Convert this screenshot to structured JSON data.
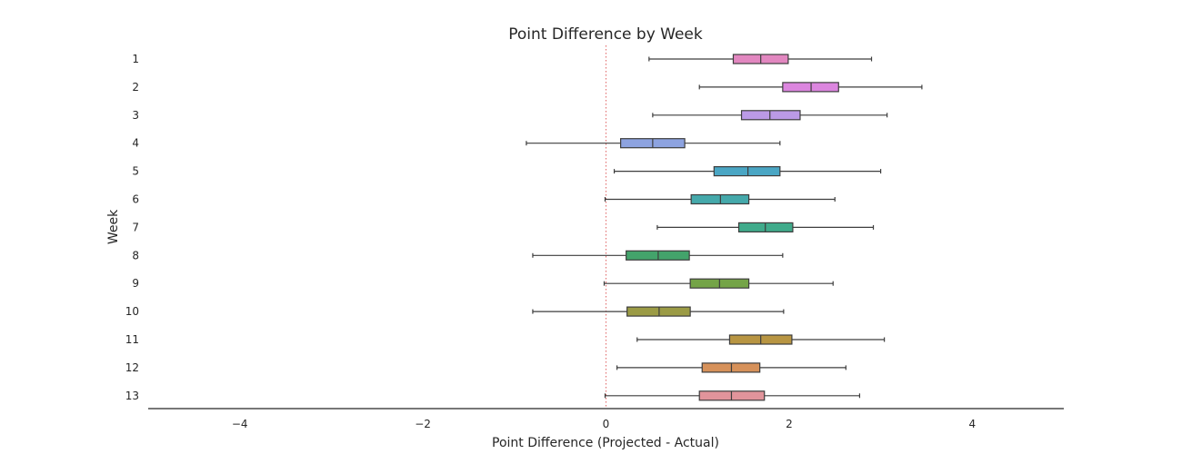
{
  "chart_data": {
    "type": "boxplot",
    "orientation": "horizontal",
    "title": "Point Difference by Week",
    "xlabel": "Point Difference (Projected - Actual)",
    "ylabel": "Week",
    "xlim": [
      -5,
      5
    ],
    "xticks": [
      -4,
      -2,
      0,
      2,
      4
    ],
    "xtick_labels": [
      "−4",
      "−2",
      "0",
      "2",
      "4"
    ],
    "reference_line": {
      "x": 0,
      "color": "#e06666",
      "style": "dotted"
    },
    "grid": false,
    "categories": [
      "1",
      "2",
      "3",
      "4",
      "5",
      "6",
      "7",
      "8",
      "9",
      "10",
      "11",
      "12",
      "13"
    ],
    "boxes": [
      {
        "week": "1",
        "whisker_low": 0.47,
        "q1": 1.39,
        "median": 1.69,
        "q3": 1.99,
        "whisker_high": 2.9,
        "color": "#e287c0"
      },
      {
        "week": "2",
        "whisker_low": 1.02,
        "q1": 1.93,
        "median": 2.24,
        "q3": 2.54,
        "whisker_high": 3.45,
        "color": "#dc86df"
      },
      {
        "week": "3",
        "whisker_low": 0.51,
        "q1": 1.48,
        "median": 1.79,
        "q3": 2.12,
        "whisker_high": 3.07,
        "color": "#bb9ae6"
      },
      {
        "week": "4",
        "whisker_low": -0.87,
        "q1": 0.16,
        "median": 0.51,
        "q3": 0.86,
        "whisker_high": 1.9,
        "color": "#8da3e0"
      },
      {
        "week": "5",
        "whisker_low": 0.09,
        "q1": 1.18,
        "median": 1.55,
        "q3": 1.9,
        "whisker_high": 3.0,
        "color": "#4aa6c4"
      },
      {
        "week": "6",
        "whisker_low": -0.01,
        "q1": 0.93,
        "median": 1.25,
        "q3": 1.56,
        "whisker_high": 2.5,
        "color": "#45a9ab"
      },
      {
        "week": "7",
        "whisker_low": 0.56,
        "q1": 1.45,
        "median": 1.74,
        "q3": 2.04,
        "whisker_high": 2.92,
        "color": "#40ab8b"
      },
      {
        "week": "8",
        "whisker_low": -0.8,
        "q1": 0.22,
        "median": 0.57,
        "q3": 0.91,
        "whisker_high": 1.93,
        "color": "#43a36b"
      },
      {
        "week": "9",
        "whisker_low": -0.02,
        "q1": 0.92,
        "median": 1.24,
        "q3": 1.56,
        "whisker_high": 2.48,
        "color": "#74a447"
      },
      {
        "week": "10",
        "whisker_low": -0.8,
        "q1": 0.23,
        "median": 0.58,
        "q3": 0.92,
        "whisker_high": 1.94,
        "color": "#9b9b45"
      },
      {
        "week": "11",
        "whisker_low": 0.34,
        "q1": 1.35,
        "median": 1.69,
        "q3": 2.03,
        "whisker_high": 3.04,
        "color": "#b89542"
      },
      {
        "week": "12",
        "whisker_low": 0.12,
        "q1": 1.05,
        "median": 1.37,
        "q3": 1.68,
        "whisker_high": 2.62,
        "color": "#d6915a"
      },
      {
        "week": "13",
        "whisker_low": -0.01,
        "q1": 1.02,
        "median": 1.37,
        "q3": 1.73,
        "whisker_high": 2.77,
        "color": "#e1949b"
      }
    ]
  }
}
